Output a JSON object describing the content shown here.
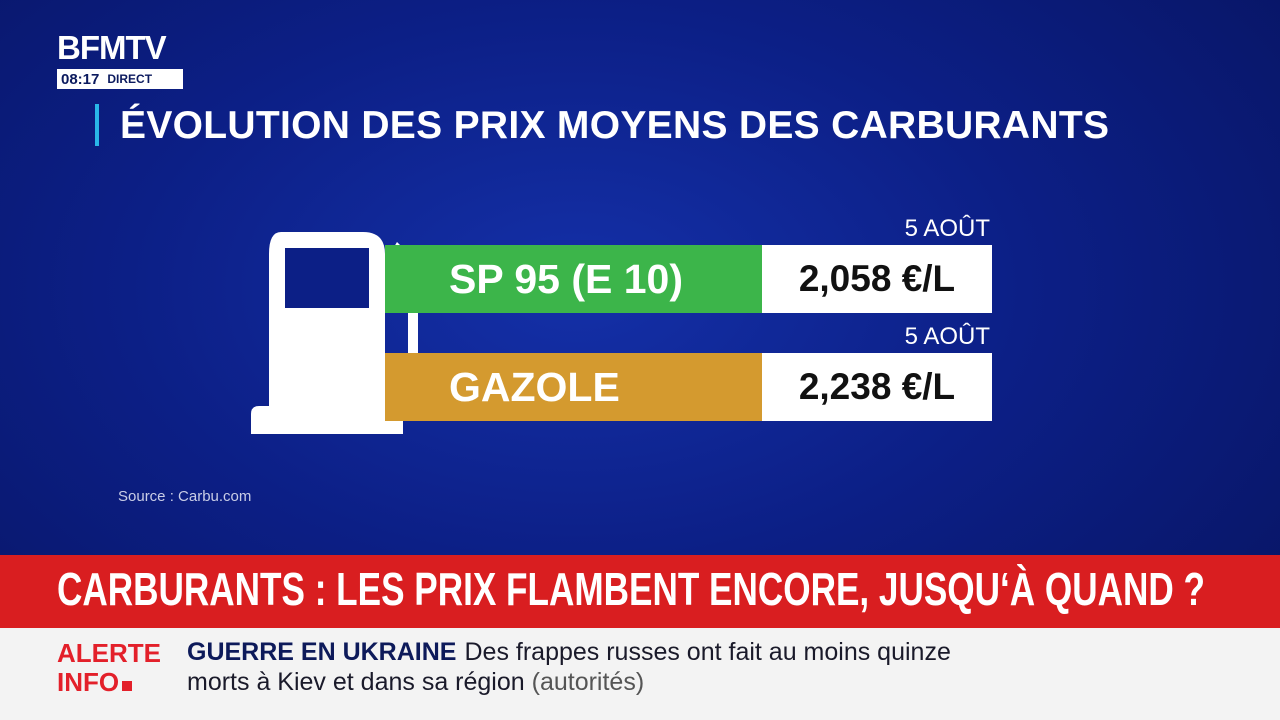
{
  "logo": {
    "brand": "BFMTV",
    "time": "08:17",
    "live": "DIRECT"
  },
  "title": "ÉVOLUTION DES PRIX MOYENS DES CARBURANTS",
  "rows": [
    {
      "date": "5 AOÛT",
      "fuel": "SP 95 (E 10)",
      "price": "2,058 €/L",
      "color": "#3cb54a"
    },
    {
      "date": "5 AOÛT",
      "fuel": "GAZOLE",
      "price": "2,238 €/L",
      "color": "#d49a2f"
    }
  ],
  "source": "Source : Carbu.com",
  "headline": "CARBURANTS : LES PRIX FLAMBENT ENCORE, JUSQU‘À QUAND ?",
  "ticker": {
    "label_1": "ALERTE",
    "label_2": "INFO",
    "topic": "GUERRE EN UKRAINE",
    "text": "Des frappes russes ont fait au moins quinze morts à Kiev et dans sa région",
    "attribution": "(autorités)"
  }
}
